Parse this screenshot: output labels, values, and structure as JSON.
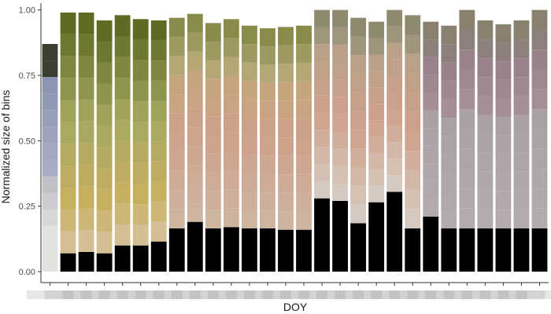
{
  "chart_data": {
    "type": "bar",
    "stacked": true,
    "title": "",
    "xlabel": "DOY",
    "ylabel": "Normalized size of bins",
    "ylim": [
      0,
      1.02
    ],
    "y_ticks": [
      "0.00",
      "0.25",
      "0.50",
      "0.75",
      "1.00"
    ],
    "y_tick_values": [
      0,
      0.25,
      0.5,
      0.75,
      1.0
    ],
    "x_tick_labels_overlapping": true,
    "grid": false,
    "legend": "none",
    "n_bars": 28,
    "totals": [
      0.87,
      0.99,
      0.99,
      0.96,
      0.98,
      0.965,
      0.96,
      0.97,
      0.985,
      0.95,
      0.965,
      0.94,
      0.93,
      0.935,
      0.94,
      1.0,
      1.0,
      0.97,
      0.955,
      1.0,
      0.98,
      0.955,
      0.94,
      1.0,
      0.96,
      0.945,
      0.96,
      1.0
    ],
    "first_segment_tops": [
      0.175,
      0.07,
      0.075,
      0.07,
      0.1,
      0.1,
      0.115,
      0.165,
      0.19,
      0.165,
      0.17,
      0.165,
      0.165,
      0.16,
      0.16,
      0.28,
      0.27,
      0.185,
      0.265,
      0.305,
      0.165,
      0.21,
      0.165,
      0.165,
      0.165,
      0.165,
      0.165,
      0.165
    ],
    "segments_per_bar": 12,
    "colors": {
      "low_start": "#e4e2df",
      "olive_top": "#5f6a22",
      "olive_mid": "#a6a860",
      "gold": "#c9b060",
      "salmon": "#cfa08a",
      "mauve": "#a8949a",
      "blue": "#8a92b0",
      "dark": "#3a3f2f",
      "gray_bar_bottom": "#b5acb0"
    }
  }
}
